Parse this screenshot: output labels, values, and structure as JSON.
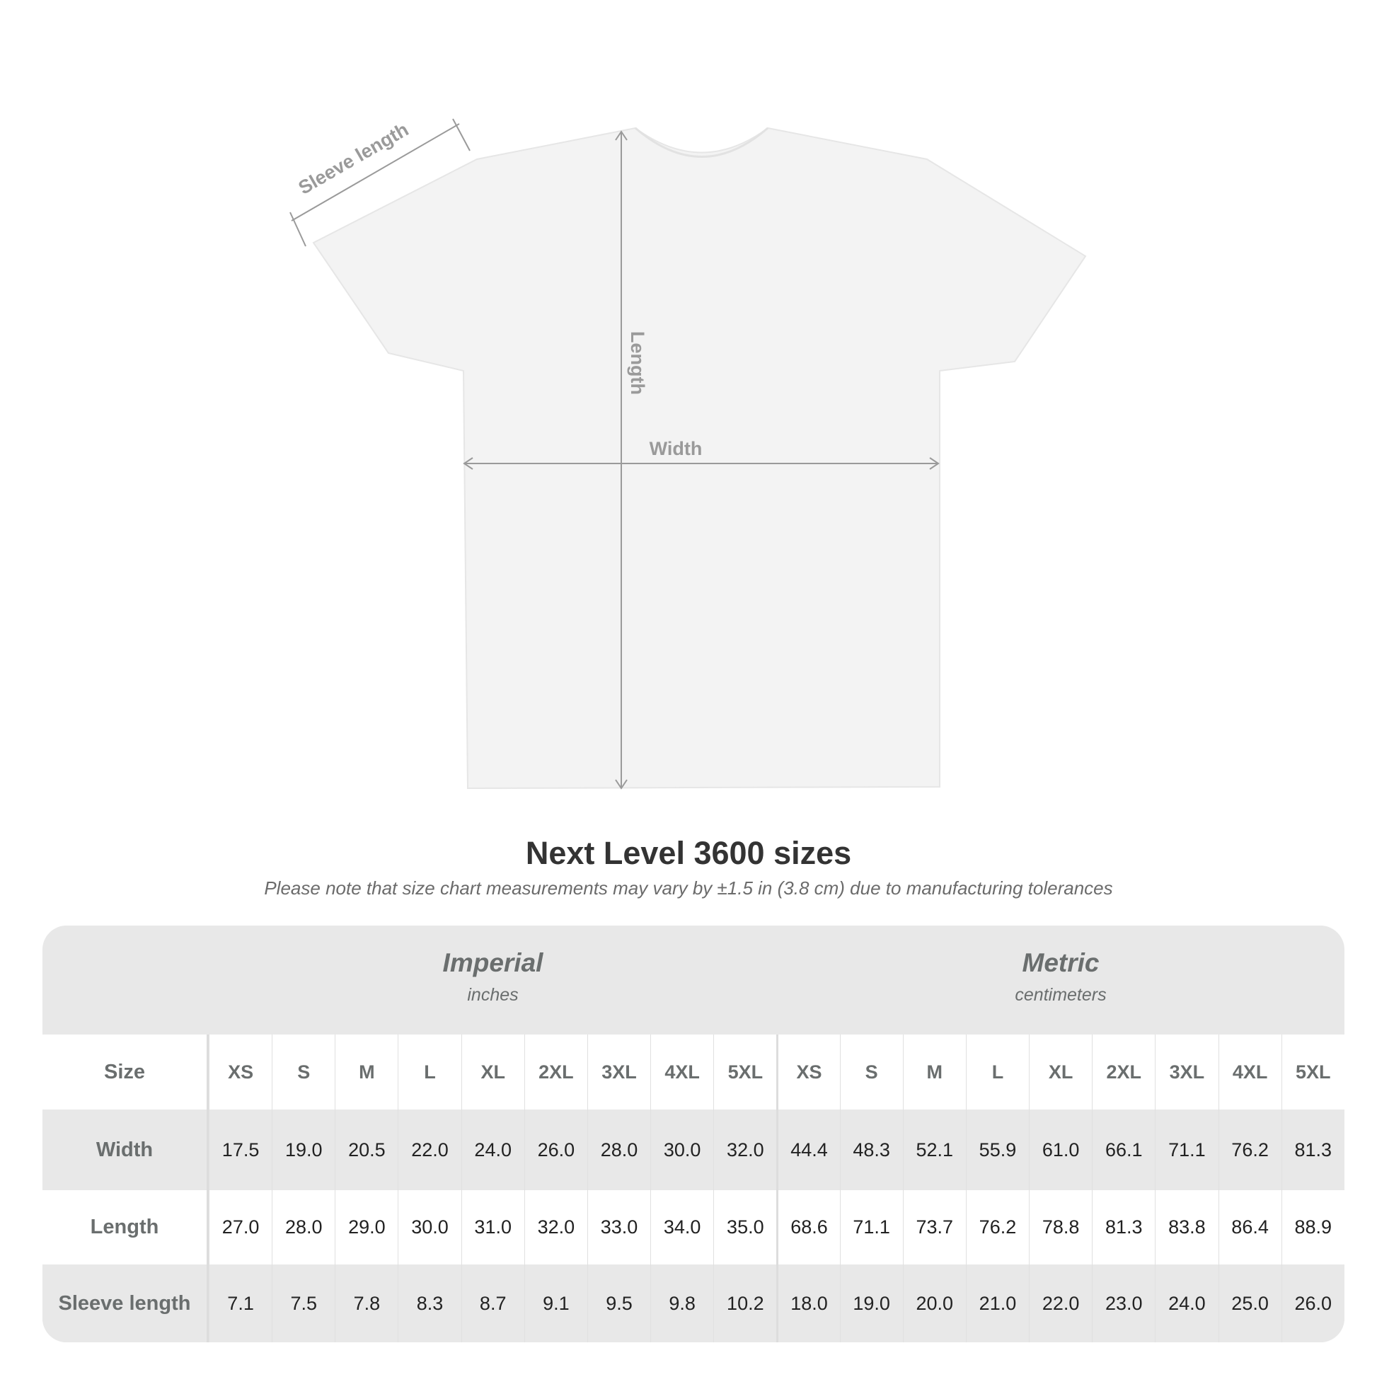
{
  "diagram": {
    "labels": {
      "sleeve": "Sleeve length",
      "length": "Length",
      "width": "Width"
    },
    "shirt_color": "#f2f2f2",
    "arrow_color": "#9a9a9a"
  },
  "title": "Next Level 3600 sizes",
  "subtitle": "Please note that size chart measurements may vary by ±1.5 in (3.8 cm) due to manufacturing tolerances",
  "table": {
    "imperial": {
      "name": "Imperial",
      "unit": "inches"
    },
    "metric": {
      "name": "Metric",
      "unit": "centimeters"
    },
    "size_label": "Size",
    "sizes": [
      "XS",
      "S",
      "M",
      "L",
      "XL",
      "2XL",
      "3XL",
      "4XL",
      "5XL"
    ],
    "rows": [
      {
        "label": "Width",
        "imperial": [
          "17.5",
          "19.0",
          "20.5",
          "22.0",
          "24.0",
          "26.0",
          "28.0",
          "30.0",
          "32.0"
        ],
        "metric": [
          "44.4",
          "48.3",
          "52.1",
          "55.9",
          "61.0",
          "66.1",
          "71.1",
          "76.2",
          "81.3"
        ]
      },
      {
        "label": "Length",
        "imperial": [
          "27.0",
          "28.0",
          "29.0",
          "30.0",
          "31.0",
          "32.0",
          "33.0",
          "34.0",
          "35.0"
        ],
        "metric": [
          "68.6",
          "71.1",
          "73.7",
          "76.2",
          "78.8",
          "81.3",
          "83.8",
          "86.4",
          "88.9"
        ]
      },
      {
        "label": "Sleeve length",
        "imperial": [
          "7.1",
          "7.5",
          "7.8",
          "8.3",
          "8.7",
          "9.1",
          "9.5",
          "9.8",
          "10.2"
        ],
        "metric": [
          "18.0",
          "19.0",
          "20.0",
          "21.0",
          "22.0",
          "23.0",
          "24.0",
          "25.0",
          "26.0"
        ]
      }
    ]
  }
}
